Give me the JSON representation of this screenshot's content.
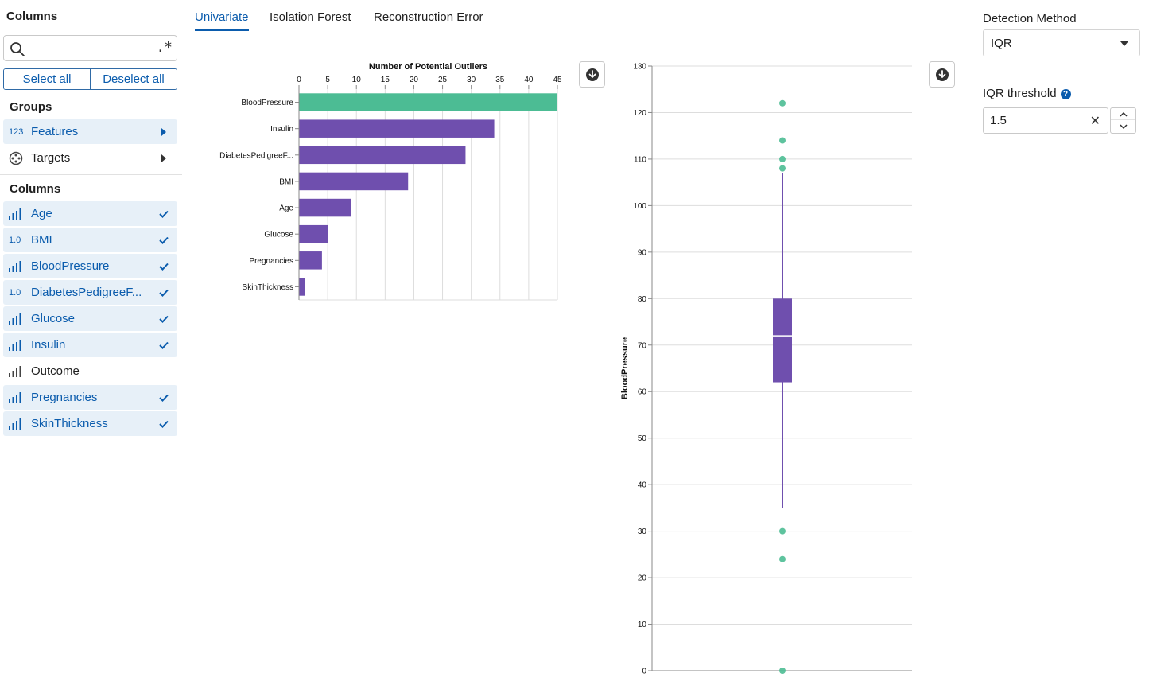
{
  "sidebar": {
    "title": "Columns",
    "search": {
      "value": "",
      "placeholder": "",
      "regex_label": ".*"
    },
    "select_all": "Select all",
    "deselect_all": "Deselect all",
    "groups_label": "Groups",
    "groups": [
      {
        "label": "Features",
        "icon": "123",
        "selected": true
      },
      {
        "label": "Targets",
        "icon": "target-icon",
        "selected": false
      }
    ],
    "columns_label": "Columns",
    "columns": [
      {
        "label": "Age",
        "icon": "bar-chart-icon",
        "selected": true
      },
      {
        "label": "BMI",
        "icon": "1.0",
        "selected": true
      },
      {
        "label": "BloodPressure",
        "icon": "bar-chart-icon",
        "selected": true
      },
      {
        "label": "DiabetesPedigreeF...",
        "icon": "1.0",
        "selected": true
      },
      {
        "label": "Glucose",
        "icon": "bar-chart-icon",
        "selected": true
      },
      {
        "label": "Insulin",
        "icon": "bar-chart-icon",
        "selected": true
      },
      {
        "label": "Outcome",
        "icon": "bar-chart-icon",
        "selected": false
      },
      {
        "label": "Pregnancies",
        "icon": "bar-chart-icon",
        "selected": true
      },
      {
        "label": "SkinThickness",
        "icon": "bar-chart-icon",
        "selected": true
      }
    ]
  },
  "tabs": [
    {
      "label": "Univariate",
      "active": true
    },
    {
      "label": "Isolation Forest",
      "active": false
    },
    {
      "label": "Reconstruction Error",
      "active": false
    }
  ],
  "right_panel": {
    "method_label": "Detection Method",
    "method_value": "IQR",
    "threshold_label": "IQR threshold",
    "threshold_value": "1.5",
    "help_glyph": "?"
  },
  "colors": {
    "accent": "#0b5cad",
    "purple": "#6f4fae",
    "green": "#4cbc94",
    "selected_bg": "#e7f0f8"
  },
  "chart_data": [
    {
      "type": "bar",
      "orientation": "horizontal",
      "title": "Number of Potential Outliers",
      "categories": [
        "BloodPressure",
        "Insulin",
        "DiabetesPedigreeF...",
        "BMI",
        "Age",
        "Glucose",
        "Pregnancies",
        "SkinThickness"
      ],
      "values": [
        45,
        34,
        29,
        19,
        9,
        5,
        4,
        1
      ],
      "highlight": "BloodPressure",
      "xticks": [
        0,
        5,
        10,
        15,
        20,
        25,
        30,
        35,
        40,
        45
      ],
      "xlim": [
        0,
        45
      ],
      "grid": true
    },
    {
      "type": "boxplot",
      "ylabel": "BloodPressure",
      "ylim": [
        0,
        130
      ],
      "yticks": [
        0,
        10,
        20,
        30,
        40,
        50,
        60,
        70,
        80,
        90,
        100,
        110,
        120,
        130
      ],
      "whisker_low": 35,
      "q1": 62,
      "median": 72,
      "q3": 80,
      "whisker_high": 107,
      "outliers": [
        122,
        114,
        110,
        108,
        30,
        24,
        0
      ],
      "grid": true
    }
  ]
}
